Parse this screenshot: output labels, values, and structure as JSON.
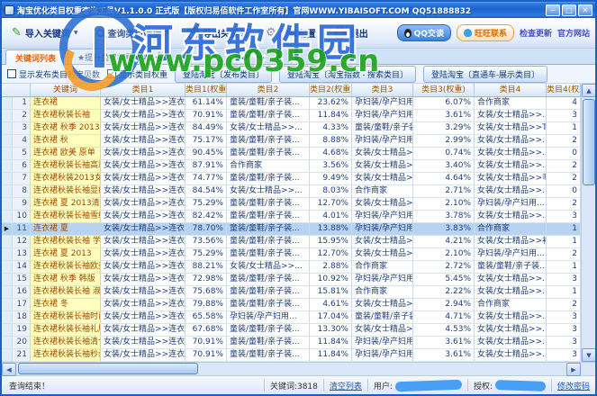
{
  "window": {
    "title": "淘宝优化类目权重查询工具V1.1.0.0 正式版【版权归易佰软件工作室所有】官网WWW.YIBAISOFT.COM QQ51888832"
  },
  "icons": {
    "minimize": "─",
    "maximize": "□",
    "close": "✕",
    "dropdown": "▼",
    "check": "✓",
    "row_selector": "▶",
    "scroll_up": "▲",
    "scroll_down": "▼",
    "scroll_left": "◀",
    "scroll_right": "▶",
    "gear": "⚙",
    "pencil": "✎",
    "exit_x": "✕"
  },
  "toolbar": {
    "buttons": [
      {
        "label": "导入关键词",
        "has_dropdown": true
      },
      {
        "label": "查询类目数据",
        "has_dropdown": true
      },
      {
        "label": "导出关键词",
        "has_dropdown": false
      },
      {
        "label": "参数配置",
        "has_dropdown": false
      },
      {
        "label": "退出",
        "has_dropdown": false
      }
    ],
    "qq_button": "QQ交谈",
    "ww_button": "旺旺联系",
    "links": [
      "检查更新",
      "官方网站"
    ]
  },
  "tabs": [
    {
      "label": "关键词列表",
      "active": true
    },
    {
      "label": "★提升类目权重指数",
      "active": false
    }
  ],
  "filters": {
    "checkbox_show_count": {
      "label": "显示发布类目的宝贝数",
      "checked": false
    },
    "checkbox_show_weight": {
      "label": "显示类目权重",
      "checked": true
    },
    "login_buttons": [
      "登陆淘宝〔发布类目〕",
      "登陆淘宝〔淘宝指数 - 搜索类目〕",
      "登陆淘宝〔直通车-展示类目〕"
    ]
  },
  "table": {
    "headers": [
      "",
      "关键词",
      "类目1",
      "类目1(权重)",
      "类目2",
      "类目2(权重)",
      "类目3",
      "类目3(权重)",
      "类目4",
      "类目4(权重"
    ],
    "selected_row": 11,
    "rows": [
      [
        "1",
        "连衣裙",
        "女装/女士精品>>连衣裙",
        "61.14%",
        "童装/童鞋/亲子装...",
        "23.62%",
        "孕妇装/孕产妇用...",
        "6.07%",
        "合作商家",
        "4"
      ],
      [
        "2",
        "连衣裙秋装长袖",
        "女装/女士精品>>连衣裙",
        "70.91%",
        "童装/童鞋/亲子装...",
        "11.84%",
        "孕妇装/孕产妇用...",
        "3.61%",
        "女装/女士精品>>...",
        "3"
      ],
      [
        "3",
        "连衣裙 秋季 2013...",
        "女装/女士精品>>连衣裙",
        "84.49%",
        "女装/女士精品>>...",
        "4.33%",
        "童装/童鞋/亲子装...",
        "3.29%",
        "女装/女士精品>>T恤",
        "1"
      ],
      [
        "4",
        "连衣裙 秋",
        "女装/女士精品>>连衣裙",
        "75.17%",
        "童装/童鞋/亲子装...",
        "8.88%",
        "孕妇装/孕产妇用...",
        "2.99%",
        "女装/女士精品>>...",
        "2"
      ],
      [
        "5",
        "连衣裙 欧美 原单",
        "女装/女士精品>>连衣裙",
        "90.45%",
        "童装/童鞋/亲子装...",
        "4.68%",
        "女装/女士精品>>...",
        "0.74%",
        "女装/女士精品>>...",
        "0"
      ],
      [
        "6",
        "连衣裙秋装长袖高端",
        "女装/女士精品>>连衣裙",
        "87.91%",
        "合作商家",
        "3.56%",
        "女装/女士精品>>...",
        "3.40%",
        "女装/女士精品>>...",
        "2"
      ],
      [
        "7",
        "连衣裙秋装2013女款",
        "女装/女士精品>>连衣裙",
        "74.77%",
        "童装/童鞋/亲子装...",
        "9.49%",
        "女装/女士精品>>...",
        "4.64%",
        "女装/女士精品>>毛衣",
        "2"
      ],
      [
        "8",
        "连衣裙秋装长袖显瘦",
        "女装/女士精品>>连衣裙",
        "84.54%",
        "女装/女士精品>>...",
        "8.03%",
        "合作商家",
        "2.71%",
        "女装/女士精品>>...",
        "0"
      ],
      [
        "9",
        "连衣裙 夏 2013清仓",
        "女装/女士精品>>连衣裙",
        "75.29%",
        "童装/童鞋/亲子装...",
        "12.70%",
        "女装/女士精品>>...",
        "2.10%",
        "孕妇装/孕产妇用...",
        "2"
      ],
      [
        "10",
        "连衣裙秋装长袖雪纺",
        "女装/女士精品>>连衣裙",
        "82.42%",
        "童装/童鞋/亲子装...",
        "4.01%",
        "孕妇装/孕产妇用...",
        "3.78%",
        "女装/女士精品>>...",
        "3"
      ],
      [
        "11",
        "连衣裙 夏",
        "女装/女士精品>>连衣裙",
        "78.70%",
        "童装/童鞋/亲子装...",
        "13.88%",
        "孕妇装/孕产妇用...",
        "3.83%",
        "合作商家",
        "1"
      ],
      [
        "12",
        "连衣裙秋装长袖 学生",
        "女装/女士精品>>连衣裙",
        "73.56%",
        "童装/童鞋/亲子装...",
        "15.95%",
        "女装/女士精品>>T恤",
        "4.21%",
        "女装/女士精品>>衬衫",
        "1"
      ],
      [
        "13",
        "连衣裙 夏 2013",
        "女装/女士精品>>连衣裙",
        "75.29%",
        "童装/童鞋/亲子装...",
        "12.70%",
        "女装/女士精品>>...",
        "2.10%",
        "孕妇装/孕产妇用...",
        "2"
      ],
      [
        "14",
        "连衣裙秋装长袖欧美",
        "女装/女士精品>>连衣裙",
        "88.21%",
        "女装/女士精品>>...",
        "2.88%",
        "合作商家",
        "2.72%",
        "童装/童鞋/亲子装...",
        "1"
      ],
      [
        "15",
        "连衣裙 秋季 韩版",
        "女装/女士精品>>连衣裙",
        "72.98%",
        "童装/童鞋/亲子装...",
        "10.92%",
        "孕妇装/孕产妇用...",
        "5.45%",
        "女装/女士精品>>...",
        "3"
      ],
      [
        "16",
        "连衣裙秋装长袖 淑女",
        "女装/女士精品>>连衣裙",
        "75.68%",
        "童装/童鞋/亲子装...",
        "15.81%",
        "合作商家",
        "2.22%",
        "女装/女士精品>>...",
        "1"
      ],
      [
        "17",
        "连衣裙 冬",
        "女装/女士精品>>连衣裙",
        "79.88%",
        "童装/童鞋/亲子装...",
        "4.61%",
        "女装/女士精品>>毛衣",
        "2.94%",
        "合作商家",
        "2"
      ],
      [
        "18",
        "连衣裙秋装长袖时尚",
        "女装/女士精品>>连衣裙",
        "65.58%",
        "孕妇装/孕产妇用...",
        "17.04%",
        "童装/童鞋/亲子装...",
        "4.71%",
        "女装/女士精品>>...",
        "3"
      ],
      [
        "19",
        "连衣裙秋装长袖礼服",
        "女装/女士精品>>连衣裙",
        "67.68%",
        "童装/童鞋/亲子装...",
        "13.30%",
        "女装/女士精品>>...",
        "4.53%",
        "女装/女士精品>>...",
        "3"
      ],
      [
        "20",
        "连衣裙秋装长袖清仓",
        "女装/女士精品>>连衣裙",
        "70.91%",
        "童装/童鞋/亲子装...",
        "11.84%",
        "孕妇装/孕产妇用...",
        "3.61%",
        "女装/女士精品>>...",
        "3"
      ],
      [
        "21",
        "连衣裙秋装长袖秒杀",
        "女装/女士精品>>连衣裙",
        "70.91%",
        "童装/童鞋/亲子装...",
        "11.84%",
        "孕妇装/孕产妇用...",
        "3.61%",
        "女装/女士精品>>...",
        "3"
      ]
    ]
  },
  "statusbar": {
    "message": "查询结束！",
    "keyword_count": "关键词:3818",
    "clear_link": "清空列表",
    "user_label": "用户:",
    "auth_label": "授权:",
    "change_pwd_link": "修改密码"
  },
  "watermark": {
    "site_name": "河东软件园",
    "site_url": "www.pc0359.cn"
  },
  "colors": {
    "titlebar_blue": "#1e62cc",
    "selection_blue": "#b8d3f1",
    "keyword_yellow": "#ffffbe",
    "header_text_brown": "#9c5a00",
    "active_tab_orange": "#e8650a",
    "watermark_blue": "#2f6bd8",
    "watermark_green": "#1ba41b"
  }
}
